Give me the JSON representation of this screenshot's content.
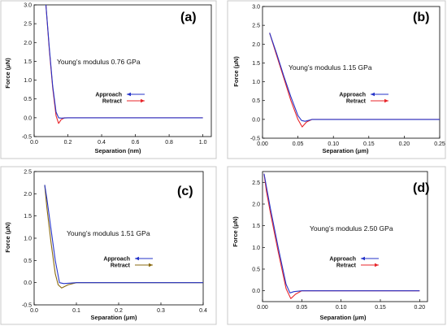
{
  "colors": {
    "approach": "#2433c9",
    "retract": "#e8252a",
    "retract_alt": "#8a6a10",
    "axis": "#000000",
    "box": "#c8c8c8"
  },
  "chart_data": [
    {
      "type": "line",
      "panel_label": "(a)",
      "annotation": "Young’s modulus  0.76 GPa",
      "xlabel": "Separation (nm)",
      "ylabel": "Force (μN)",
      "xlim": [
        0,
        1.05
      ],
      "ylim": [
        -0.5,
        3.0
      ],
      "xticks": [
        0.0,
        0.2,
        0.4,
        0.6,
        0.8,
        1.0
      ],
      "xtick_labels": [
        "0.0",
        "0.2",
        "0.4",
        "0.6",
        "0.8",
        "1.0"
      ],
      "yticks": [
        -0.5,
        0.0,
        0.5,
        1.0,
        1.5,
        2.0,
        2.5,
        3.0
      ],
      "ytick_labels": [
        "-0.5",
        "0.0",
        "0.5",
        "1.0",
        "1.5",
        "2.0",
        "2.5",
        "3.0"
      ],
      "legend": [
        "Approach",
        "Retract"
      ],
      "series": [
        {
          "name": "Approach",
          "color": "#2433c9",
          "x": [
            0.07,
            0.09,
            0.11,
            0.13,
            0.145,
            0.16,
            0.2,
            0.4,
            0.6,
            0.8,
            1.0
          ],
          "y": [
            3.0,
            1.85,
            0.85,
            0.15,
            0.0,
            -0.01,
            0.0,
            0.0,
            0.0,
            0.0,
            0.0
          ]
        },
        {
          "name": "Retract",
          "color": "#e8252a",
          "x": [
            0.07,
            0.09,
            0.11,
            0.13,
            0.145,
            0.16,
            0.18,
            0.2,
            0.4,
            0.6,
            0.8,
            1.0
          ],
          "y": [
            3.0,
            1.8,
            0.8,
            0.05,
            -0.15,
            -0.05,
            0.0,
            0.0,
            0.0,
            0.0,
            0.0,
            0.0
          ]
        }
      ]
    },
    {
      "type": "line",
      "panel_label": "(b)",
      "annotation": "Young’s modulus  1.15 GPa",
      "xlabel": "Separation (μm)",
      "ylabel": "Force (μN)",
      "xlim": [
        0,
        0.25
      ],
      "ylim": [
        -0.5,
        3.0
      ],
      "xticks": [
        0.0,
        0.05,
        0.1,
        0.15,
        0.2,
        0.25
      ],
      "xtick_labels": [
        "0.00",
        "0.05",
        "0.10",
        "0.15",
        "0.20",
        "0.25"
      ],
      "yticks": [
        -0.5,
        0.0,
        0.5,
        1.0,
        1.5,
        2.0,
        2.5,
        3.0
      ],
      "ytick_labels": [
        "-0.5",
        "0.0",
        "0.5",
        "1.0",
        "1.5",
        "2.0",
        "2.5",
        "3.0"
      ],
      "legend": [
        "Approach",
        "Retract"
      ],
      "series": [
        {
          "name": "Approach",
          "color": "#2433c9",
          "x": [
            0.01,
            0.02,
            0.03,
            0.04,
            0.05,
            0.055,
            0.06,
            0.07,
            0.1,
            0.15,
            0.2,
            0.25
          ],
          "y": [
            2.3,
            1.75,
            1.15,
            0.6,
            0.1,
            -0.03,
            -0.05,
            0.0,
            0.0,
            0.0,
            0.0,
            0.0
          ]
        },
        {
          "name": "Retract",
          "color": "#e8252a",
          "x": [
            0.01,
            0.02,
            0.03,
            0.04,
            0.05,
            0.056,
            0.062,
            0.07,
            0.1,
            0.15,
            0.2,
            0.25
          ],
          "y": [
            2.3,
            1.7,
            1.1,
            0.5,
            0.0,
            -0.2,
            -0.07,
            0.0,
            0.0,
            0.0,
            0.0,
            0.0
          ]
        }
      ]
    },
    {
      "type": "line",
      "panel_label": "(c)",
      "annotation": "Young’s modulus   1.51 GPa",
      "xlabel": "Separation (μm)",
      "ylabel": "Force (μN)",
      "xlim": [
        0,
        0.4
      ],
      "ylim": [
        -0.5,
        2.5
      ],
      "xticks": [
        0.0,
        0.1,
        0.2,
        0.3,
        0.4
      ],
      "xtick_labels": [
        "0.0",
        "0.1",
        "0.2",
        "0.3",
        "0.4"
      ],
      "yticks": [
        -0.5,
        0.0,
        0.5,
        1.0,
        1.5,
        2.0,
        2.5
      ],
      "ytick_labels": [
        "-0.5",
        "0.0",
        "0.5",
        "1.0",
        "1.5",
        "2.0",
        "2.5"
      ],
      "legend": [
        "Approach",
        "Retract"
      ],
      "series": [
        {
          "name": "Approach",
          "color": "#2433c9",
          "x": [
            0.025,
            0.03,
            0.04,
            0.05,
            0.06,
            0.07,
            0.1,
            0.2,
            0.3,
            0.4
          ],
          "y": [
            2.2,
            1.9,
            1.2,
            0.5,
            0.0,
            -0.02,
            0.0,
            0.0,
            0.0,
            0.0
          ]
        },
        {
          "name": "Retract",
          "color": "#8a6a10",
          "x": [
            0.025,
            0.03,
            0.04,
            0.05,
            0.057,
            0.065,
            0.08,
            0.1,
            0.2,
            0.3,
            0.4
          ],
          "y": [
            2.2,
            1.7,
            0.9,
            0.2,
            -0.05,
            -0.12,
            -0.05,
            0.0,
            0.0,
            0.0,
            0.0
          ]
        }
      ]
    },
    {
      "type": "line",
      "panel_label": "(d)",
      "annotation": "Young’s modulus  2.50 GPa",
      "xlabel": "Separation (μm)",
      "ylabel": "Force (μN)",
      "xlim": [
        0,
        0.21
      ],
      "ylim": [
        -0.25,
        2.75
      ],
      "xticks": [
        0.0,
        0.05,
        0.1,
        0.15,
        0.2
      ],
      "xtick_labels": [
        "0.00",
        "0.05",
        "0.10",
        "0.15",
        "0.20"
      ],
      "yticks": [
        0.0,
        0.5,
        1.0,
        1.5,
        2.0,
        2.5
      ],
      "ytick_labels": [
        "0.0",
        "0.5",
        "1.0",
        "1.5",
        "2.0",
        "2.5"
      ],
      "legend": [
        "Approach",
        "Retract"
      ],
      "series": [
        {
          "name": "Approach",
          "color": "#2433c9",
          "x": [
            0.002,
            0.005,
            0.01,
            0.02,
            0.03,
            0.035,
            0.04,
            0.05,
            0.1,
            0.15,
            0.2
          ],
          "y": [
            2.7,
            2.4,
            1.9,
            1.0,
            0.15,
            -0.05,
            -0.02,
            0.0,
            0.0,
            0.0,
            0.0
          ]
        },
        {
          "name": "Retract",
          "color": "#e8252a",
          "x": [
            0.002,
            0.005,
            0.01,
            0.02,
            0.03,
            0.036,
            0.042,
            0.05,
            0.1,
            0.15,
            0.2
          ],
          "y": [
            2.7,
            2.3,
            1.8,
            0.9,
            0.05,
            -0.18,
            -0.08,
            0.0,
            0.0,
            0.0,
            0.0
          ]
        }
      ]
    }
  ]
}
